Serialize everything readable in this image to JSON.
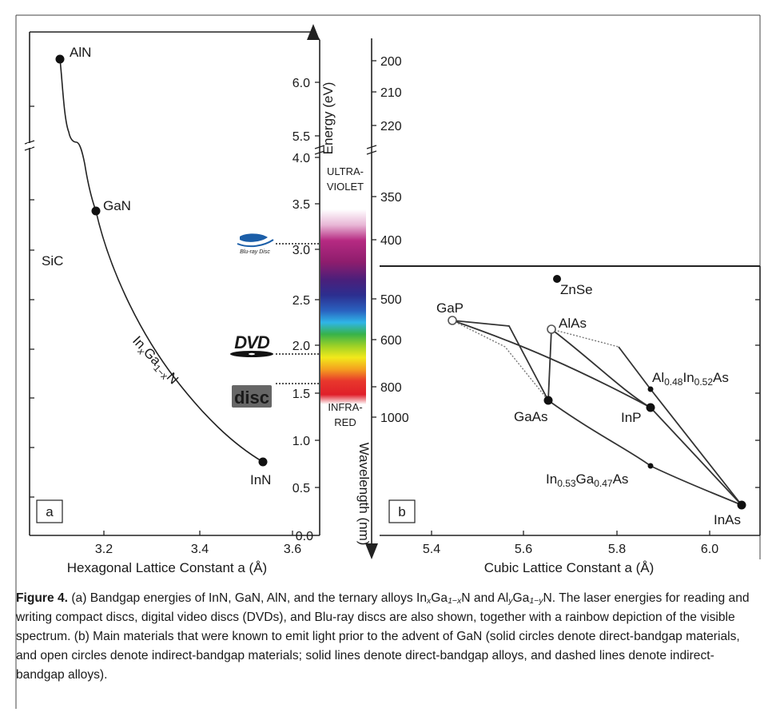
{
  "figure": {
    "caption": {
      "bold": "Figure 4.",
      "p1": " (a) Bandgap energies of InN, GaN, AlN, and the ternary alloys In",
      "p1_sub1": "x",
      "p1_mid1": "Ga",
      "p1_sub2": "1−x",
      "p1_mid2": "N and Al",
      "p1_sub3": "y",
      "p1_mid3": "Ga",
      "p1_sub4": "1−y",
      "p1_end": "N. The laser energies for reading and writing compact discs, digital video discs (DVDs), and Blu-ray discs are also shown, together with a rainbow depiction of the visible spectrum. (b) Main materials that were known to emit light prior to the advent of GaN (solid circles denote direct-bandgap materials, and open circles denote indirect-bandgap materials; solid lines denote direct-bandgap alloys, and dashed lines denote indirect-bandgap alloys)."
    }
  },
  "chart_data": [
    {
      "panel": "a",
      "type": "line",
      "xlabel": "Hexagonal Lattice Constant a (Å)",
      "ylabel": "Energy (eV)",
      "xlim": [
        3.05,
        3.6
      ],
      "x_ticks": [
        "3.2",
        "3.4",
        "3.6"
      ],
      "y_ticks": [
        "0.0",
        "0.5",
        "1.0",
        "1.5",
        "2.0",
        "2.5",
        "3.0",
        "3.5",
        "4.0",
        "5.5",
        "6.0"
      ],
      "y_axis_break": [
        4.0,
        5.5
      ],
      "points": [
        {
          "label": "AlN",
          "x": 3.11,
          "y": 6.2
        },
        {
          "label": "GaN",
          "x": 3.19,
          "y": 3.4
        },
        {
          "label": "InN",
          "x": 3.54,
          "y": 0.77
        },
        {
          "label": "SiC",
          "x": null,
          "y": null
        }
      ],
      "alloy_label": {
        "base": "In",
        "sub1": "x",
        "mid": "Ga",
        "sub2": "1−x",
        "end": "N"
      },
      "curves": [
        {
          "from": "AlN",
          "to": "GaN",
          "x": [
            3.11,
            3.115,
            3.125,
            3.14,
            3.15,
            3.175,
            3.19
          ],
          "y": [
            6.2,
            5.5,
            4.35,
            4.15,
            4.1,
            3.7,
            3.4
          ]
        },
        {
          "from": "GaN",
          "to": "InN",
          "x": [
            3.19,
            3.25,
            3.32,
            3.4,
            3.47,
            3.54
          ],
          "y": [
            3.4,
            2.55,
            1.9,
            1.4,
            1.05,
            0.77
          ]
        }
      ],
      "panel_label": "a"
    },
    {
      "panel": "spectrum",
      "type": "table",
      "wavelength_ticks": [
        "200",
        "210",
        "220",
        "350",
        "400",
        "500",
        "600",
        "800",
        "1000"
      ],
      "wavelength_label": "Wavelength (nm)",
      "region_labels": {
        "uv": [
          "ULTRA-",
          "VIOLET"
        ],
        "ir": [
          "INFRA-",
          "RED"
        ]
      },
      "lasers": [
        {
          "name": "Blu-ray Disc",
          "energy_ev": 3.06
        },
        {
          "name": "DVD",
          "energy_ev": 1.89
        },
        {
          "name": "Compact Disc",
          "energy_ev": 1.6
        }
      ]
    },
    {
      "panel": "b",
      "type": "scatter",
      "xlabel": "Cubic Lattice Constant a (Å)",
      "xlim": [
        5.3,
        6.15
      ],
      "x_ticks": [
        "5.4",
        "5.6",
        "5.8",
        "6.0"
      ],
      "points": [
        {
          "label": "ZnSe",
          "x": 5.67,
          "y": 2.7,
          "direct": true
        },
        {
          "label": "GaP",
          "x": 5.45,
          "y": 2.26,
          "direct": false
        },
        {
          "label": "AlAs",
          "x": 5.66,
          "y": 2.16,
          "direct": false
        },
        {
          "label": "GaAs",
          "x": 5.65,
          "y": 1.42,
          "direct": true
        },
        {
          "label": "InP",
          "x": 5.87,
          "y": 1.34,
          "direct": true
        },
        {
          "label": "InAs",
          "x": 6.06,
          "y": 0.35,
          "direct": true
        }
      ],
      "alloy_labels": [
        {
          "base": "Al",
          "sub1": "0.48",
          "mid": "In",
          "sub2": "0.52",
          "end": "As",
          "x": 5.87,
          "y": 1.61
        },
        {
          "base": "In",
          "sub1": "0.53",
          "mid": "Ga",
          "sub2": "0.47",
          "end": "As",
          "x": 5.87,
          "y": 0.75
        }
      ],
      "lines": [
        {
          "from": "GaP",
          "to": "GaAs",
          "style": "solid",
          "x": [
            5.45,
            5.57,
            5.65
          ],
          "y": [
            2.26,
            2.2,
            1.42
          ]
        },
        {
          "from": "GaP",
          "to": "InP",
          "style": "solid",
          "x": [
            5.45,
            5.67,
            5.87
          ],
          "y": [
            2.26,
            1.9,
            1.34
          ]
        },
        {
          "from": "GaP",
          "to": "GaAs",
          "style": "dashed",
          "x": [
            5.45,
            5.56,
            5.65
          ],
          "y": [
            2.26,
            1.9,
            1.42
          ]
        },
        {
          "from": "AlAs",
          "to": "GaAs",
          "style": "solid",
          "x": [
            5.66,
            5.65
          ],
          "y": [
            2.16,
            1.42
          ]
        },
        {
          "from": "AlAs",
          "to": "InAs",
          "style": "dashed_then_solid",
          "x": [
            5.66,
            5.8,
            6.06
          ],
          "y": [
            2.16,
            1.95,
            0.35
          ]
        },
        {
          "from": "GaAs",
          "to": "InAs",
          "style": "solid",
          "x": [
            5.65,
            5.87,
            6.06
          ],
          "y": [
            1.42,
            0.75,
            0.35
          ]
        },
        {
          "from": "InP",
          "to": "InAs",
          "style": "solid",
          "x": [
            5.87,
            6.06
          ],
          "y": [
            1.34,
            0.35
          ]
        }
      ],
      "panel_label": "b"
    }
  ]
}
